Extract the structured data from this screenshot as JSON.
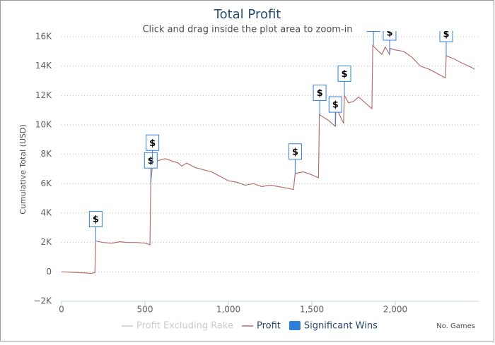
{
  "chart_data": {
    "type": "line",
    "title": "Total Profit",
    "subtitle": "Click and drag inside the plot area to zoom-in",
    "y_label": "Cumulative Total (USD)",
    "x_label": "No. Games",
    "xlim": [
      0,
      2500
    ],
    "xticks": [
      0,
      500,
      {
        "value": 1000,
        "label": "1,000"
      },
      {
        "value": 1500,
        "label": "1,500"
      },
      {
        "value": 2000,
        "label": "2,000"
      }
    ],
    "ylim": [
      -2000,
      16000
    ],
    "yticks": [
      {
        "value": -2000,
        "label": "−2K"
      },
      0,
      {
        "value": 2000,
        "label": "2K"
      },
      {
        "value": 4000,
        "label": "4K"
      },
      {
        "value": 6000,
        "label": "6K"
      },
      {
        "value": 8000,
        "label": "8K"
      },
      {
        "value": 10000,
        "label": "10K"
      },
      {
        "value": 12000,
        "label": "12K"
      },
      {
        "value": 14000,
        "label": "14K"
      },
      {
        "value": 16000,
        "label": "16K"
      }
    ],
    "grid": true,
    "series": [
      {
        "name": "Profit Excluding Rake",
        "color": "#cccccc",
        "visible": false
      },
      {
        "name": "Profit",
        "color": "#b5706c",
        "visible": true,
        "x": [
          0,
          50,
          100,
          150,
          180,
          200,
          205,
          250,
          300,
          350,
          400,
          450,
          500,
          530,
          535,
          545,
          560,
          620,
          700,
          720,
          750,
          800,
          900,
          1000,
          1050,
          1100,
          1150,
          1200,
          1250,
          1300,
          1350,
          1390,
          1400,
          1450,
          1500,
          1540,
          1545,
          1600,
          1640,
          1645,
          1690,
          1695,
          1720,
          1750,
          1780,
          1800,
          1860,
          1865,
          1900,
          1920,
          1940,
          1965,
          1970,
          2000,
          2050,
          2100,
          2150,
          2200,
          2250,
          2300,
          2305,
          2350,
          2400,
          2440,
          2475
        ],
        "values": [
          0,
          -20,
          -50,
          -80,
          -100,
          -50,
          2100,
          2000,
          1950,
          2050,
          2000,
          2000,
          1950,
          1850,
          6100,
          7300,
          7500,
          7700,
          7400,
          7200,
          7400,
          7100,
          6800,
          6200,
          6100,
          5900,
          6000,
          5800,
          5900,
          5800,
          5700,
          5600,
          6700,
          6800,
          6600,
          6400,
          10700,
          10300,
          9900,
          11200,
          10100,
          12000,
          11500,
          11600,
          11900,
          11700,
          11100,
          15400,
          15000,
          14800,
          15300,
          14800,
          15200,
          15100,
          15000,
          14600,
          14000,
          13800,
          13500,
          13200,
          14700,
          14500,
          14200,
          14000,
          13800
        ]
      }
    ],
    "flags": {
      "name": "Significant Wins",
      "color": "#2f7ed8",
      "text": "$",
      "x": [
        205,
        535,
        545,
        1400,
        1547,
        1641,
        1695,
        1869,
        1966,
        2305
      ]
    }
  }
}
